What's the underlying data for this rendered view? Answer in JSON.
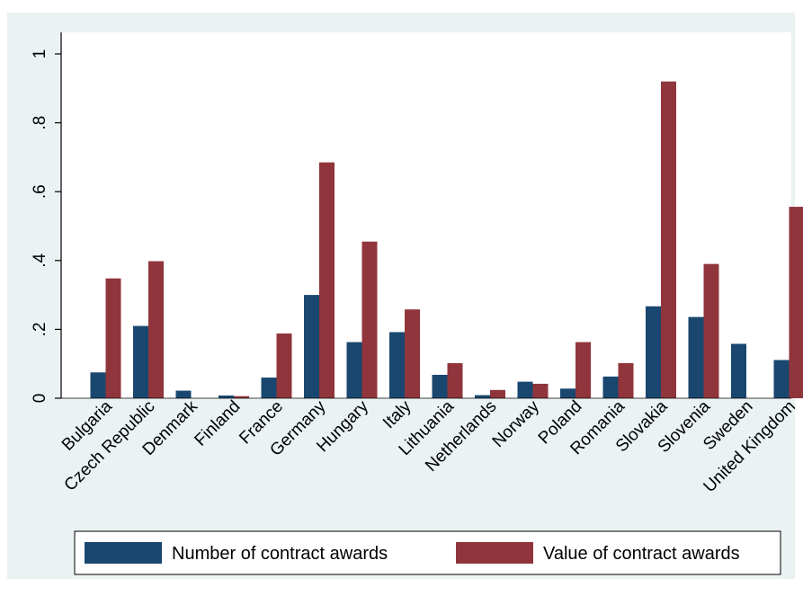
{
  "chart_data": {
    "type": "bar",
    "title": "",
    "xlabel": "",
    "ylabel": "",
    "categories": [
      "Bulgaria",
      "Czech Republic",
      "Denmark",
      "Finland",
      "France",
      "Germany",
      "Hungary",
      "Italy",
      "Lithuania",
      "Netherlands",
      "Norway",
      "Poland",
      "Romania",
      "Slovakia",
      "Slovenia",
      "Sweden",
      "United Kingdom"
    ],
    "series": [
      {
        "name": "Number of contract awards",
        "color": "#1a476f",
        "values": [
          0.075,
          0.21,
          0.022,
          0.008,
          0.06,
          0.3,
          0.163,
          0.192,
          0.068,
          0.009,
          0.048,
          0.028,
          0.063,
          0.267,
          0.236,
          0.158,
          0.111
        ]
      },
      {
        "name": "Value of contract awards",
        "color": "#90353b",
        "values": [
          0.348,
          0.398,
          0.0,
          0.006,
          0.188,
          0.685,
          0.455,
          0.258,
          0.102,
          0.024,
          0.042,
          0.163,
          0.102,
          0.92,
          0.39,
          0.0,
          0.556
        ]
      }
    ],
    "ylim": [
      0,
      1
    ],
    "yticks": [
      0,
      0.2,
      0.4,
      0.6,
      0.8,
      1
    ],
    "ytick_labels": [
      "0",
      ".2",
      ".4",
      ".6",
      ".8",
      "1"
    ],
    "grid": false,
    "legend_position": "bottom",
    "colors": {
      "outer_background": "#eaf2f3",
      "plot_background": "#ffffff"
    }
  }
}
